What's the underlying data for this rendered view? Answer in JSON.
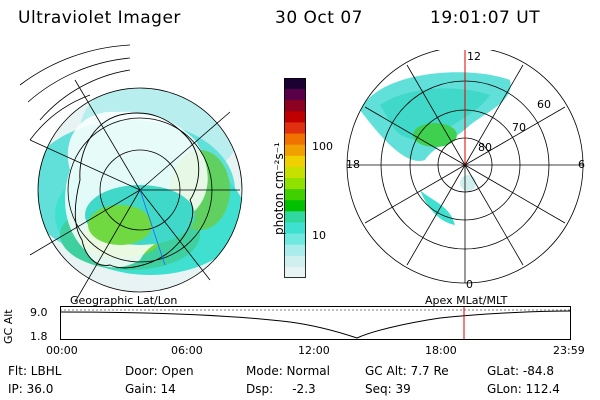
{
  "header": {
    "instrument": "Ultraviolet Imager",
    "date": "30 Oct 07",
    "time": "19:01:07 UT"
  },
  "geo_map": {
    "label": "Geographic Lat/Lon"
  },
  "apex_map": {
    "label": "Apex MLat/MLT",
    "mlt_labels": {
      "top": "12",
      "left": "18",
      "right": "6",
      "bottom": "0"
    },
    "lat_labels": [
      "60",
      "70",
      "80"
    ]
  },
  "colorbar": {
    "unit_label": "photon cm⁻²s⁻¹",
    "tick_labels": [
      "100",
      "10"
    ],
    "colors": [
      "#1a0033",
      "#5a0048",
      "#8c0020",
      "#c00000",
      "#e03010",
      "#f07000",
      "#f0a000",
      "#f0d000",
      "#c8e000",
      "#90e000",
      "#40d000",
      "#00c000",
      "#30d8a0",
      "#40e0d0",
      "#70e8e0",
      "#a8ecec",
      "#d0f0f0",
      "#e8f4f4"
    ]
  },
  "timeline": {
    "axis_label": "GC Alt",
    "y_max_label": "9.0",
    "y_min_label": "1.8",
    "x_ticks": [
      "00:00",
      "06:00",
      "12:00",
      "18:00",
      "23:59"
    ],
    "marker_color": "#e00000"
  },
  "status": {
    "flt": "Flt: LBHL",
    "ip": "IP: 36.0",
    "door": "Door: Open",
    "gain": "Gain: 14",
    "mode": "Mode: Normal",
    "dsp": "Dsp:     -2.3",
    "gc_alt": "GC Alt: 7.7 Re",
    "seq": "Seq: 39",
    "glat": "GLat: -84.8",
    "glon": "GLon: 112.4"
  }
}
